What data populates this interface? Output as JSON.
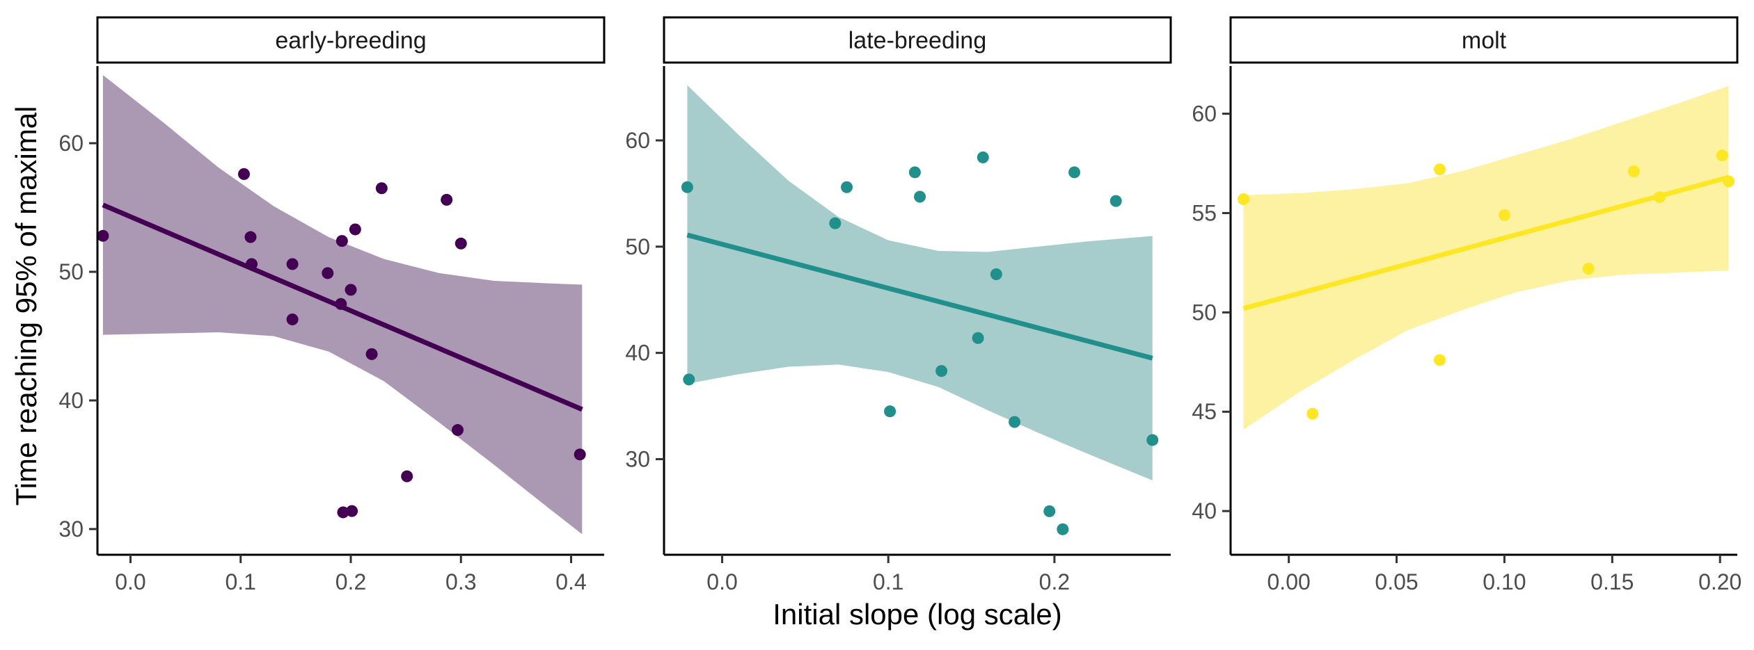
{
  "chart_data": {
    "type": "scatter",
    "xlabel": "Initial slope (log scale)",
    "ylabel": "Time reaching 95% of maximal",
    "panels": [
      {
        "name": "early-breeding",
        "color": "#440154",
        "band_color": "#ab98b3",
        "xlim": [
          -0.03,
          0.43
        ],
        "ylim": [
          28,
          66
        ],
        "x_ticks": [
          0.0,
          0.1,
          0.2,
          0.3,
          0.4
        ],
        "x_tick_labels": [
          "0.0",
          "0.1",
          "0.2",
          "0.3",
          "0.4"
        ],
        "y_ticks": [
          30,
          40,
          50,
          60
        ],
        "y_tick_labels": [
          "30",
          "40",
          "50",
          "60"
        ],
        "points": [
          {
            "x": -0.025,
            "y": 52.8
          },
          {
            "x": 0.103,
            "y": 57.6
          },
          {
            "x": 0.109,
            "y": 52.7
          },
          {
            "x": 0.11,
            "y": 50.6
          },
          {
            "x": 0.147,
            "y": 50.6
          },
          {
            "x": 0.147,
            "y": 46.3
          },
          {
            "x": 0.179,
            "y": 49.9
          },
          {
            "x": 0.192,
            "y": 52.4
          },
          {
            "x": 0.191,
            "y": 47.5
          },
          {
            "x": 0.2,
            "y": 48.6
          },
          {
            "x": 0.204,
            "y": 53.3
          },
          {
            "x": 0.219,
            "y": 43.6
          },
          {
            "x": 0.228,
            "y": 56.5
          },
          {
            "x": 0.287,
            "y": 55.6
          },
          {
            "x": 0.3,
            "y": 52.2
          },
          {
            "x": 0.297,
            "y": 37.7
          },
          {
            "x": 0.251,
            "y": 34.1
          },
          {
            "x": 0.193,
            "y": 31.3
          },
          {
            "x": 0.201,
            "y": 31.4
          },
          {
            "x": 0.408,
            "y": 35.8
          }
        ],
        "fit": {
          "x": [
            -0.025,
            0.41
          ],
          "y": [
            55.2,
            39.3
          ]
        },
        "band": {
          "x": [
            -0.025,
            0.03,
            0.08,
            0.13,
            0.18,
            0.23,
            0.28,
            0.33,
            0.38,
            0.41
          ],
          "upper": [
            65.3,
            61.6,
            58.1,
            55.1,
            52.7,
            51.0,
            49.9,
            49.3,
            49.1,
            49.0
          ],
          "lower": [
            45.1,
            45.2,
            45.3,
            45.0,
            43.8,
            41.5,
            38.3,
            35.0,
            31.6,
            29.6
          ]
        }
      },
      {
        "name": "late-breeding",
        "color": "#21908c",
        "band_color": "#a6cdcb",
        "xlim": [
          -0.035,
          0.27
        ],
        "ylim": [
          21,
          67
        ],
        "x_ticks": [
          0.0,
          0.1,
          0.2
        ],
        "x_tick_labels": [
          "0.0",
          "0.1",
          "0.2"
        ],
        "y_ticks": [
          30,
          40,
          50,
          60
        ],
        "y_tick_labels": [
          "30",
          "40",
          "50",
          "60"
        ],
        "points": [
          {
            "x": -0.021,
            "y": 55.6
          },
          {
            "x": -0.02,
            "y": 37.5
          },
          {
            "x": 0.068,
            "y": 52.2
          },
          {
            "x": 0.075,
            "y": 55.6
          },
          {
            "x": 0.101,
            "y": 34.5
          },
          {
            "x": 0.116,
            "y": 57.0
          },
          {
            "x": 0.119,
            "y": 54.7
          },
          {
            "x": 0.132,
            "y": 38.3
          },
          {
            "x": 0.154,
            "y": 41.4
          },
          {
            "x": 0.157,
            "y": 58.4
          },
          {
            "x": 0.165,
            "y": 47.4
          },
          {
            "x": 0.176,
            "y": 33.5
          },
          {
            "x": 0.197,
            "y": 25.1
          },
          {
            "x": 0.205,
            "y": 23.4
          },
          {
            "x": 0.212,
            "y": 57.0
          },
          {
            "x": 0.237,
            "y": 54.3
          },
          {
            "x": 0.259,
            "y": 31.8
          }
        ],
        "fit": {
          "x": [
            -0.021,
            0.259
          ],
          "y": [
            51.1,
            39.5
          ]
        },
        "band": {
          "x": [
            -0.021,
            0.01,
            0.04,
            0.07,
            0.1,
            0.13,
            0.16,
            0.19,
            0.22,
            0.259
          ],
          "upper": [
            65.2,
            60.5,
            56.2,
            52.8,
            50.6,
            49.6,
            49.5,
            50.0,
            50.5,
            51.0
          ],
          "lower": [
            37.1,
            38.0,
            38.7,
            38.9,
            38.2,
            36.8,
            34.6,
            32.5,
            30.5,
            28.0
          ]
        }
      },
      {
        "name": "molt",
        "color": "#fde725",
        "band_color": "#fdf2a1",
        "xlim": [
          -0.027,
          0.208
        ],
        "ylim": [
          37.8,
          62.4
        ],
        "x_ticks": [
          0.0,
          0.05,
          0.1,
          0.15,
          0.2
        ],
        "x_tick_labels": [
          "0.00",
          "0.05",
          "0.10",
          "0.15",
          "0.20"
        ],
        "y_ticks": [
          40,
          45,
          50,
          55,
          60
        ],
        "y_tick_labels": [
          "40",
          "45",
          "50",
          "55",
          "60"
        ],
        "points": [
          {
            "x": -0.021,
            "y": 55.7
          },
          {
            "x": 0.011,
            "y": 44.9
          },
          {
            "x": 0.07,
            "y": 57.2
          },
          {
            "x": 0.07,
            "y": 47.6
          },
          {
            "x": 0.1,
            "y": 54.9
          },
          {
            "x": 0.139,
            "y": 52.2
          },
          {
            "x": 0.16,
            "y": 57.1
          },
          {
            "x": 0.172,
            "y": 55.8
          },
          {
            "x": 0.201,
            "y": 57.9
          },
          {
            "x": 0.204,
            "y": 56.6
          }
        ],
        "fit": {
          "x": [
            -0.021,
            0.204
          ],
          "y": [
            50.2,
            56.8
          ]
        },
        "band": {
          "x": [
            -0.021,
            0.005,
            0.03,
            0.055,
            0.08,
            0.105,
            0.13,
            0.155,
            0.18,
            0.204
          ],
          "upper": [
            55.9,
            56.0,
            56.2,
            56.5,
            57.1,
            57.9,
            58.7,
            59.6,
            60.5,
            61.4
          ],
          "lower": [
            44.1,
            46.0,
            47.6,
            49.1,
            50.1,
            51.0,
            51.6,
            51.9,
            52.0,
            52.1
          ]
        }
      }
    ]
  }
}
